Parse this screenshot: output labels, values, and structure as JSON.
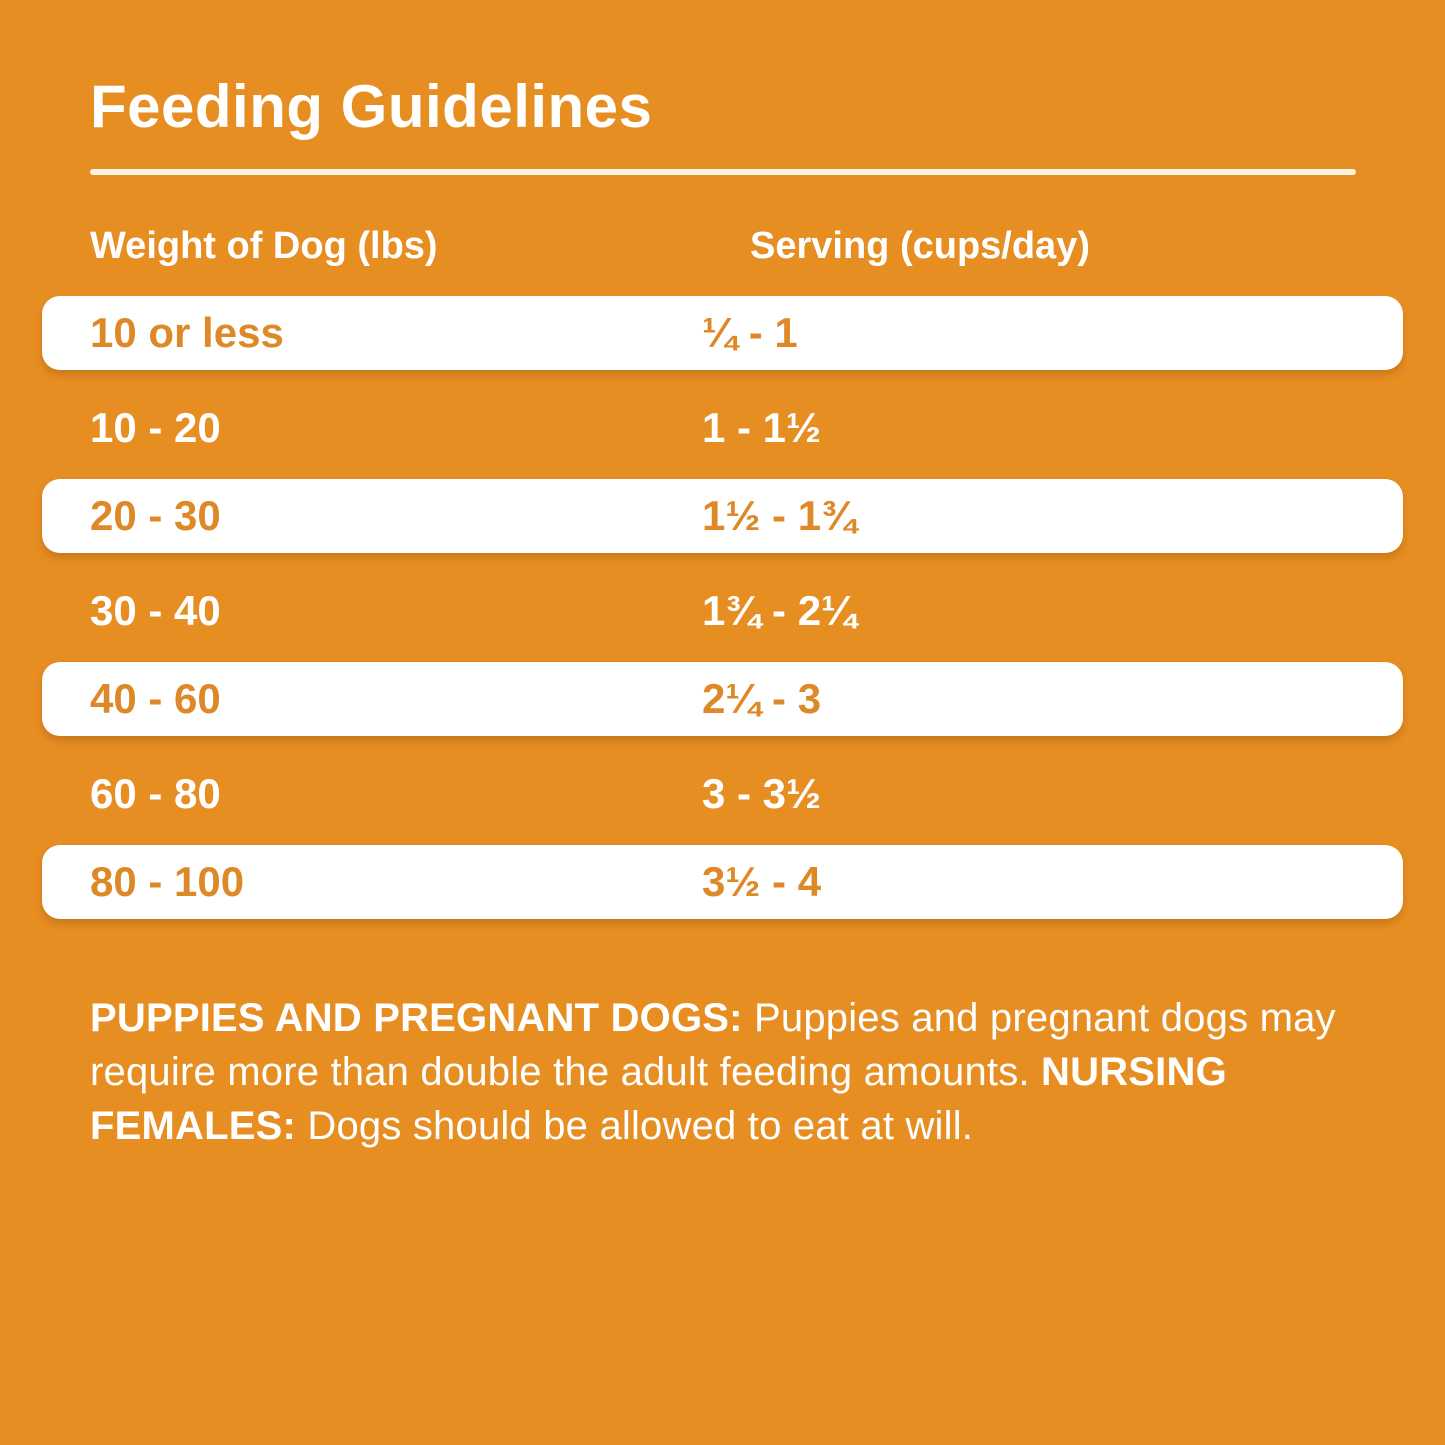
{
  "page": {
    "title": "Feeding Guidelines",
    "colors": {
      "background": "#E78E23",
      "accent_text": "#DE8927",
      "bar": "#FFFFFF",
      "rule": "#FAF3DF",
      "light_text": "#FFFFFF"
    }
  },
  "table": {
    "headers": [
      "Weight of Dog (lbs)",
      "Serving (cups/day)"
    ],
    "rows": [
      {
        "weight": "10 or less",
        "serving": "¼ - 1",
        "highlight": true
      },
      {
        "weight": "10 - 20",
        "serving": "1 - 1½",
        "highlight": false
      },
      {
        "weight": "20 - 30",
        "serving": "1½ - 1¾",
        "highlight": true
      },
      {
        "weight": "30 - 40",
        "serving": "1¾ - 2¼",
        "highlight": false
      },
      {
        "weight": "40 - 60",
        "serving": "2¼ - 3",
        "highlight": true
      },
      {
        "weight": "60 - 80",
        "serving": "3 - 3½",
        "highlight": false
      },
      {
        "weight": "80 - 100",
        "serving": "3½ - 4",
        "highlight": true
      }
    ]
  },
  "notes": {
    "segments": [
      {
        "text": "PUPPIES AND PREGNANT DOGS: ",
        "bold": true
      },
      {
        "text": "Puppies and pregnant dogs may require more than double the adult feeding amounts. ",
        "bold": false
      },
      {
        "text": "NURSING FEMALES: ",
        "bold": true
      },
      {
        "text": "Dogs should be allowed to eat at will.",
        "bold": false
      }
    ]
  }
}
